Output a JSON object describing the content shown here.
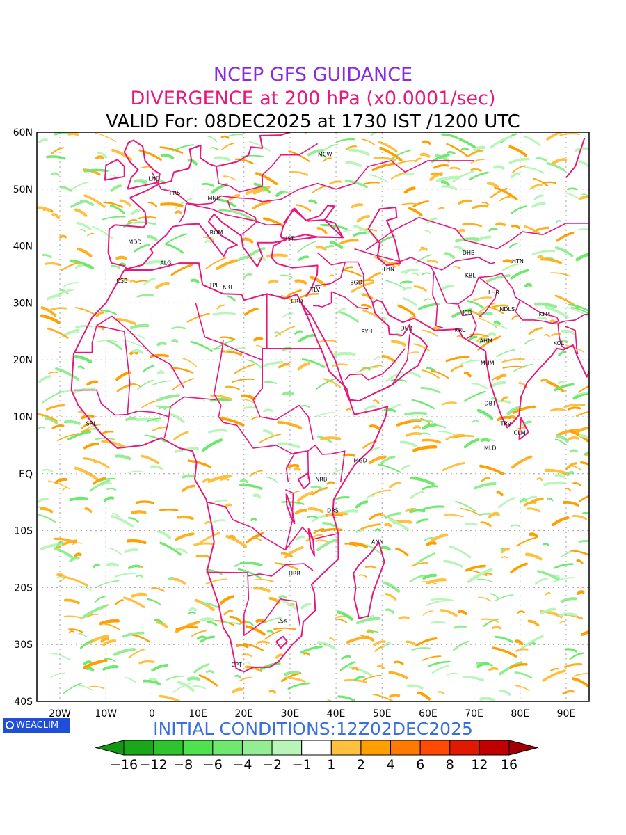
{
  "title": {
    "line1": "NCEP GFS GUIDANCE",
    "line2": "DIVERGENCE at 200 hPa (x0.0001/sec)",
    "line3": "VALID For: 08DEC2025 at 1730 IST /1200 UTC"
  },
  "initial_conditions": "INITIAL CONDITIONS:12Z02DEC2025",
  "logo": {
    "text": "WEACLIM",
    "icon": "circle-logo-icon"
  },
  "map": {
    "lat_labels": [
      {
        "lat": 60,
        "label": "60N"
      },
      {
        "lat": 50,
        "label": "50N"
      },
      {
        "lat": 40,
        "label": "40N"
      },
      {
        "lat": 30,
        "label": "30N"
      },
      {
        "lat": 20,
        "label": "20N"
      },
      {
        "lat": 10,
        "label": "10N"
      },
      {
        "lat": 0,
        "label": "EQ"
      },
      {
        "lat": -10,
        "label": "10S"
      },
      {
        "lat": -20,
        "label": "20S"
      },
      {
        "lat": -30,
        "label": "30S"
      },
      {
        "lat": -40,
        "label": "40S"
      }
    ],
    "lon_labels": [
      {
        "lon": -20,
        "label": "20W"
      },
      {
        "lon": -10,
        "label": "10W"
      },
      {
        "lon": 0,
        "label": "0"
      },
      {
        "lon": 10,
        "label": "10E"
      },
      {
        "lon": 20,
        "label": "20E"
      },
      {
        "lon": 30,
        "label": "30E"
      },
      {
        "lon": 40,
        "label": "40E"
      },
      {
        "lon": 50,
        "label": "50E"
      },
      {
        "lon": 60,
        "label": "60E"
      },
      {
        "lon": 70,
        "label": "70E"
      },
      {
        "lon": 80,
        "label": "80E"
      },
      {
        "lon": 90,
        "label": "90E"
      }
    ],
    "lon_range": [
      -25,
      95
    ],
    "lat_range": [
      -40,
      60
    ],
    "grid": "dotted",
    "coastline_color": "#e8177a",
    "cities": [
      {
        "code": "MCW",
        "lon": 37.6,
        "lat": 55.8
      },
      {
        "code": "LND",
        "lon": 0.5,
        "lat": 51.5
      },
      {
        "code": "PRS",
        "lon": 5.0,
        "lat": 49.0
      },
      {
        "code": "MNC",
        "lon": 13.5,
        "lat": 48.1
      },
      {
        "code": "ROM",
        "lon": 14.0,
        "lat": 42.0
      },
      {
        "code": "IST",
        "lon": 30.0,
        "lat": 41.0
      },
      {
        "code": "MDD",
        "lon": -3.7,
        "lat": 40.4
      },
      {
        "code": "ALG",
        "lon": 3.0,
        "lat": 36.7
      },
      {
        "code": "CSB",
        "lon": -6.5,
        "lat": 33.6
      },
      {
        "code": "TPL",
        "lon": 13.5,
        "lat": 32.8
      },
      {
        "code": "KRT",
        "lon": 16.5,
        "lat": 32.5
      },
      {
        "code": "CRO",
        "lon": 31.5,
        "lat": 30.0
      },
      {
        "code": "TLV",
        "lon": 35.5,
        "lat": 32.0
      },
      {
        "code": "BGD",
        "lon": 44.4,
        "lat": 33.3
      },
      {
        "code": "THN",
        "lon": 51.4,
        "lat": 35.7
      },
      {
        "code": "RYH",
        "lon": 46.7,
        "lat": 24.7
      },
      {
        "code": "DUB",
        "lon": 55.3,
        "lat": 25.2
      },
      {
        "code": "DHB",
        "lon": 68.8,
        "lat": 38.5
      },
      {
        "code": "KBL",
        "lon": 69.2,
        "lat": 34.5
      },
      {
        "code": "HTN",
        "lon": 79.5,
        "lat": 37.0
      },
      {
        "code": "LHR",
        "lon": 74.3,
        "lat": 31.5
      },
      {
        "code": "JCB",
        "lon": 68.5,
        "lat": 28.0
      },
      {
        "code": "NDLS",
        "lon": 77.2,
        "lat": 28.6
      },
      {
        "code": "KTM",
        "lon": 85.3,
        "lat": 27.7
      },
      {
        "code": "KRC",
        "lon": 67.0,
        "lat": 24.9
      },
      {
        "code": "AHM",
        "lon": 72.6,
        "lat": 23.0
      },
      {
        "code": "KOL",
        "lon": 88.4,
        "lat": 22.6
      },
      {
        "code": "MUM",
        "lon": 72.9,
        "lat": 19.1
      },
      {
        "code": "DBT",
        "lon": 73.5,
        "lat": 12.0
      },
      {
        "code": "TRV",
        "lon": 76.9,
        "lat": 8.5
      },
      {
        "code": "CLM",
        "lon": 79.9,
        "lat": 6.9
      },
      {
        "code": "MLD",
        "lon": 73.5,
        "lat": 4.2
      },
      {
        "code": "SRL",
        "lon": -13.2,
        "lat": 8.5
      },
      {
        "code": "MGD",
        "lon": 45.3,
        "lat": 2.0
      },
      {
        "code": "NRB",
        "lon": 36.8,
        "lat": -1.3
      },
      {
        "code": "DRS",
        "lon": 39.3,
        "lat": -6.8
      },
      {
        "code": "ANN",
        "lon": 49.0,
        "lat": -12.3
      },
      {
        "code": "HRR",
        "lon": 31.0,
        "lat": -17.8
      },
      {
        "code": "LSK",
        "lon": 28.3,
        "lat": -26.2
      },
      {
        "code": "CPT",
        "lon": 18.4,
        "lat": -33.9
      }
    ]
  },
  "legend": {
    "labels": [
      "−16",
      "−12",
      "−8",
      "−6",
      "−4",
      "−2",
      "−1",
      "1",
      "2",
      "4",
      "6",
      "8",
      "12",
      "16"
    ],
    "colors": [
      "#1aa71a",
      "#2ec42e",
      "#4ee24e",
      "#6fe86f",
      "#93ee93",
      "#b8f5b8",
      "#ffffff",
      "#ffc040",
      "#ffa000",
      "#ff7a00",
      "#ff4a00",
      "#e01a00",
      "#c00000"
    ],
    "left_arrow_color": "#129912",
    "right_arrow_color": "#a00000"
  }
}
